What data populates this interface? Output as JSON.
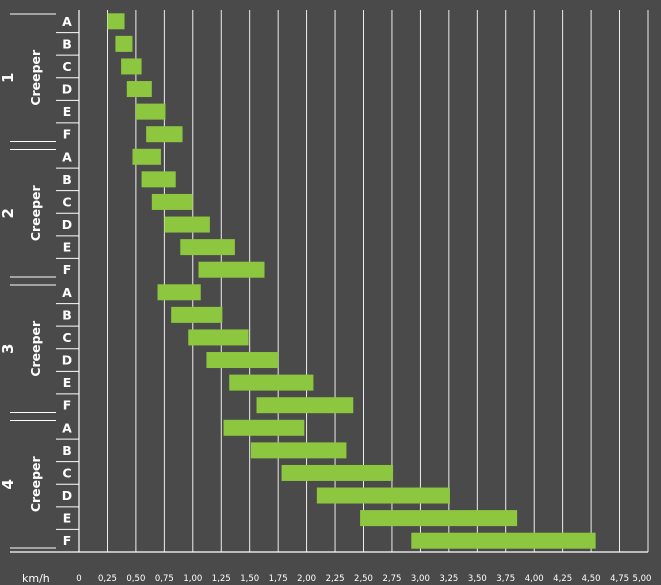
{
  "chart_data": {
    "type": "bar",
    "orientation": "horizontal-range",
    "unit_label": "km/h",
    "xlim": [
      0,
      5
    ],
    "x_ticks": [
      "0",
      "0,25",
      "0,50",
      "0,75",
      "1,00",
      "1,25",
      "1,50",
      "1,75",
      "2,00",
      "2,25",
      "2,50",
      "2,75",
      "3,00",
      "3,25",
      "3,50",
      "3,75",
      "4,00",
      "4,25",
      "4,50",
      "4,75",
      "5,00"
    ],
    "grid": true,
    "bar_color": "#8dc63f",
    "background": "#4a4a4a",
    "groups": [
      {
        "number": "1",
        "name": "Creeper",
        "bars": [
          {
            "label": "A",
            "start": 0.25,
            "end": 0.4
          },
          {
            "label": "B",
            "start": 0.32,
            "end": 0.47
          },
          {
            "label": "C",
            "start": 0.37,
            "end": 0.55
          },
          {
            "label": "D",
            "start": 0.42,
            "end": 0.64
          },
          {
            "label": "E",
            "start": 0.5,
            "end": 0.76
          },
          {
            "label": "F",
            "start": 0.59,
            "end": 0.91
          }
        ]
      },
      {
        "number": "2",
        "name": "Creeper",
        "bars": [
          {
            "label": "A",
            "start": 0.47,
            "end": 0.72
          },
          {
            "label": "B",
            "start": 0.55,
            "end": 0.85
          },
          {
            "label": "C",
            "start": 0.64,
            "end": 1.0
          },
          {
            "label": "D",
            "start": 0.75,
            "end": 1.15
          },
          {
            "label": "E",
            "start": 0.89,
            "end": 1.37
          },
          {
            "label": "F",
            "start": 1.05,
            "end": 1.63
          }
        ]
      },
      {
        "number": "3",
        "name": "Creeper",
        "bars": [
          {
            "label": "A",
            "start": 0.69,
            "end": 1.07
          },
          {
            "label": "B",
            "start": 0.81,
            "end": 1.26
          },
          {
            "label": "C",
            "start": 0.96,
            "end": 1.49
          },
          {
            "label": "D",
            "start": 1.12,
            "end": 1.75
          },
          {
            "label": "E",
            "start": 1.32,
            "end": 2.06
          },
          {
            "label": "F",
            "start": 1.56,
            "end": 2.41
          }
        ]
      },
      {
        "number": "4",
        "name": "Creeper",
        "bars": [
          {
            "label": "A",
            "start": 1.27,
            "end": 1.98
          },
          {
            "label": "B",
            "start": 1.51,
            "end": 2.35
          },
          {
            "label": "C",
            "start": 1.78,
            "end": 2.76
          },
          {
            "label": "D",
            "start": 2.09,
            "end": 3.26
          },
          {
            "label": "E",
            "start": 2.47,
            "end": 3.85
          },
          {
            "label": "F",
            "start": 2.92,
            "end": 4.54
          }
        ]
      }
    ]
  }
}
